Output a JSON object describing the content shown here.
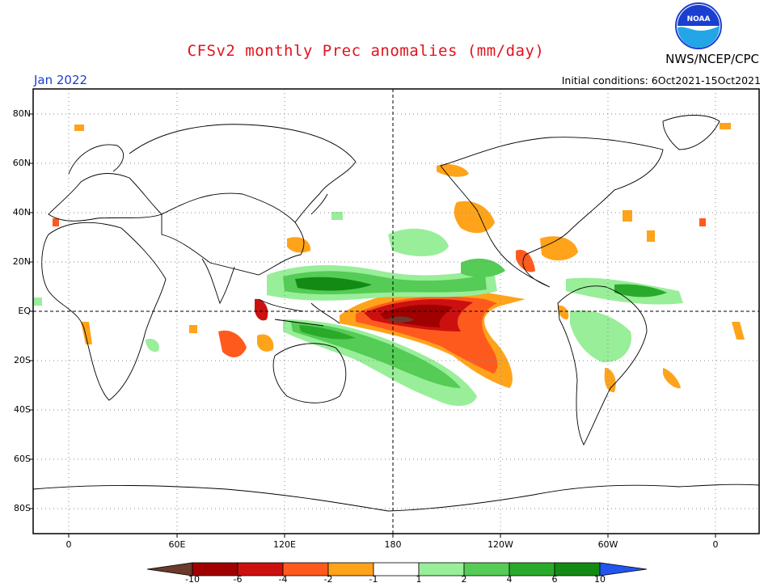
{
  "header": {
    "title": "CFSv2 monthly Prec anomalies (mm/day)",
    "agency": "NWS/NCEP/CPC",
    "logo_text": "NOAA",
    "month": "Jan 2022",
    "initial_conditions": "Initial conditions: 6Oct2021-15Oct2021"
  },
  "map": {
    "lat_labels": [
      "80N",
      "60N",
      "40N",
      "20N",
      "EQ",
      "20S",
      "40S",
      "60S",
      "80S"
    ],
    "lon_labels": [
      "0",
      "60E",
      "120E",
      "180",
      "120W",
      "60W",
      "0"
    ],
    "gridlines": "dotted"
  },
  "colorbar": {
    "labels": [
      "-10",
      "-6",
      "-4",
      "-2",
      "-1",
      "1",
      "2",
      "4",
      "6",
      "10"
    ],
    "colors": {
      "lt_-10": "#6b3a2a",
      "-10_-6": "#a00000",
      "-6_-4": "#cc1010",
      "-4_-2": "#ff5a1e",
      "-2_-1": "#ffa31a",
      "-1_1": "#ffffff",
      "1_2": "#99ee99",
      "2_4": "#55cc55",
      "4_6": "#2aaa2a",
      "6_10": "#138a13",
      "gt_10": "#2255ee"
    }
  }
}
